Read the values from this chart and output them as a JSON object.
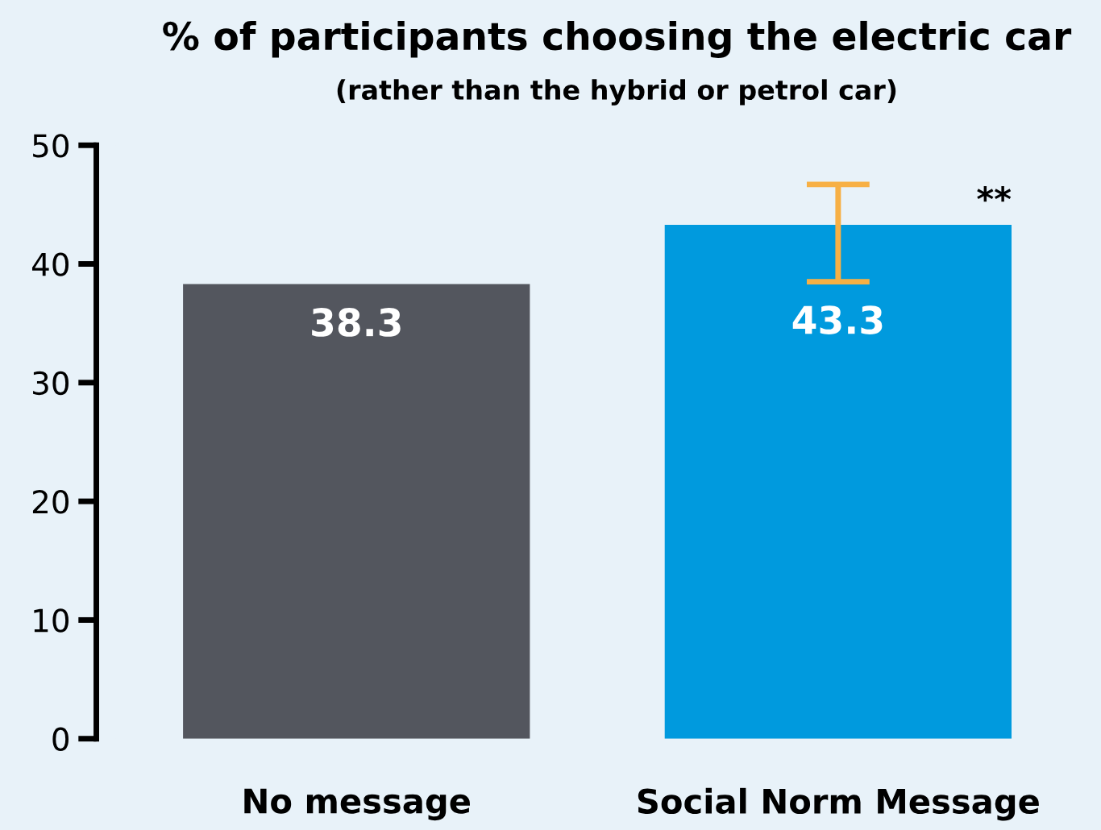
{
  "chart_data": {
    "type": "bar",
    "title": "% of participants choosing the electric car",
    "subtitle": "(rather than the hybrid or petrol car)",
    "categories": [
      "No message",
      "Social Norm Message"
    ],
    "values": [
      38.3,
      43.3
    ],
    "colors": [
      "#53565e",
      "#009ade"
    ],
    "errors": [
      null,
      [
        38.5,
        46.7
      ]
    ],
    "data_labels": true,
    "annotations": [
      "**"
    ],
    "ylim": [
      0,
      50
    ],
    "yticks": [
      0,
      10,
      20,
      30,
      40,
      50
    ],
    "grid": false,
    "legend": false
  }
}
